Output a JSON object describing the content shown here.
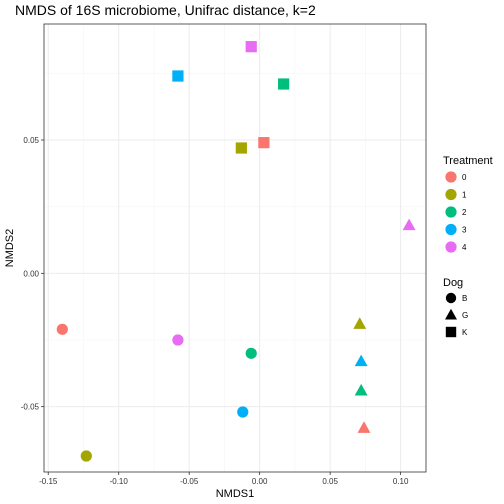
{
  "chart_data": {
    "type": "scatter",
    "title": "NMDS of 16S microbiome, Unifrac distance, k=2",
    "xlabel": "NMDS1",
    "ylabel": "NMDS2",
    "xlim": [
      -0.153,
      0.118
    ],
    "ylim": [
      -0.0745,
      0.0935
    ],
    "x_ticks": [
      -0.15,
      -0.1,
      -0.05,
      0.0,
      0.05,
      0.1
    ],
    "x_tick_labels": [
      "-0.15",
      "-0.10",
      "-0.05",
      "0.00",
      "0.05",
      "0.10"
    ],
    "y_ticks": [
      -0.05,
      0.0,
      0.05
    ],
    "y_tick_labels": [
      "-0.05",
      "0.00",
      "0.05"
    ],
    "grid": true,
    "legend_placement": "right",
    "color_legend": {
      "title": "Treatment",
      "items": [
        {
          "label": "0",
          "color": "#F8766D"
        },
        {
          "label": "1",
          "color": "#A3A500"
        },
        {
          "label": "2",
          "color": "#00BF7D"
        },
        {
          "label": "3",
          "color": "#00B0F6"
        },
        {
          "label": "4",
          "color": "#E76BF3"
        }
      ]
    },
    "shape_legend": {
      "title": "Dog",
      "items": [
        {
          "label": "B",
          "shape": "circle"
        },
        {
          "label": "G",
          "shape": "triangle"
        },
        {
          "label": "K",
          "shape": "square"
        }
      ]
    },
    "points": [
      {
        "x": -0.14,
        "y": -0.021,
        "treatment": "0",
        "dog": "B"
      },
      {
        "x": -0.123,
        "y": -0.0685,
        "treatment": "1",
        "dog": "B"
      },
      {
        "x": -0.006,
        "y": -0.03,
        "treatment": "2",
        "dog": "B"
      },
      {
        "x": -0.012,
        "y": -0.052,
        "treatment": "3",
        "dog": "B"
      },
      {
        "x": -0.058,
        "y": -0.025,
        "treatment": "4",
        "dog": "B"
      },
      {
        "x": 0.074,
        "y": -0.058,
        "treatment": "0",
        "dog": "G"
      },
      {
        "x": 0.071,
        "y": -0.019,
        "treatment": "1",
        "dog": "G"
      },
      {
        "x": 0.072,
        "y": -0.044,
        "treatment": "2",
        "dog": "G"
      },
      {
        "x": 0.072,
        "y": -0.033,
        "treatment": "3",
        "dog": "G"
      },
      {
        "x": 0.106,
        "y": 0.018,
        "treatment": "4",
        "dog": "G"
      },
      {
        "x": 0.003,
        "y": 0.049,
        "treatment": "0",
        "dog": "K"
      },
      {
        "x": -0.013,
        "y": 0.047,
        "treatment": "1",
        "dog": "K"
      },
      {
        "x": 0.017,
        "y": 0.071,
        "treatment": "2",
        "dog": "K"
      },
      {
        "x": -0.058,
        "y": 0.074,
        "treatment": "3",
        "dog": "K"
      },
      {
        "x": -0.006,
        "y": 0.085,
        "treatment": "4",
        "dog": "K"
      }
    ]
  }
}
